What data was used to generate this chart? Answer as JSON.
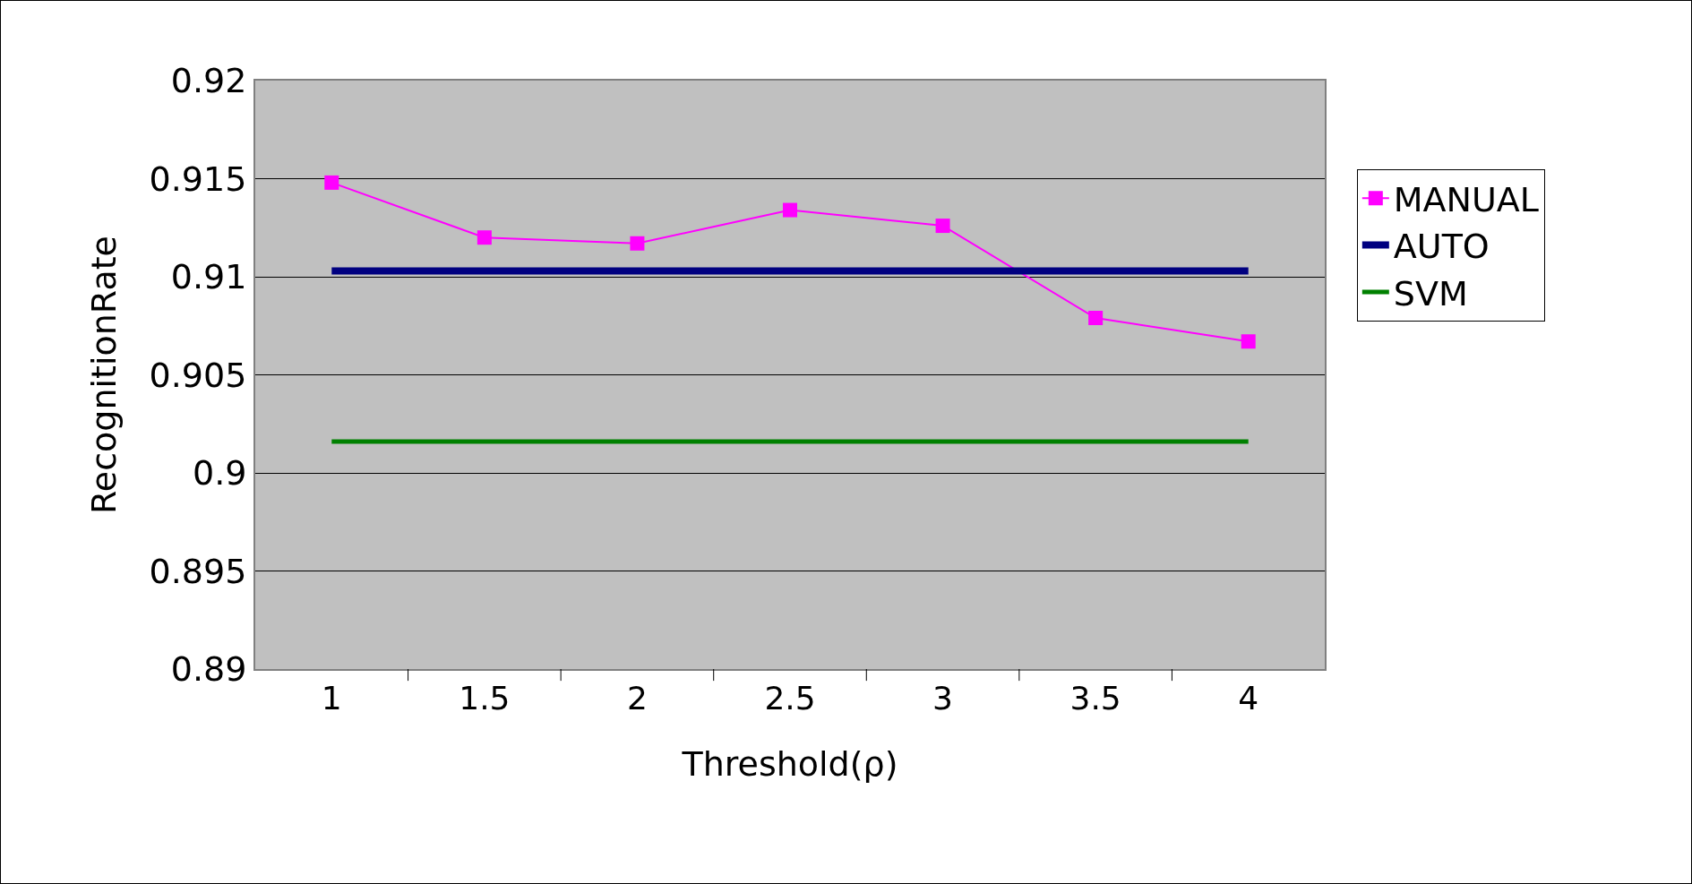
{
  "chart_data": {
    "type": "line",
    "xlabel": "Threshold(ρ)",
    "ylabel": "RecognitionRate",
    "categories": [
      "1",
      "1.5",
      "2",
      "2.5",
      "3",
      "3.5",
      "4"
    ],
    "series": [
      {
        "name": "MANUAL",
        "color": "#ff00ff",
        "marker": "square",
        "values": [
          0.9148,
          0.912,
          0.9117,
          0.9134,
          0.9126,
          0.9079,
          0.9067
        ]
      },
      {
        "name": "AUTO",
        "color": "#000080",
        "marker": "none",
        "values": [
          0.9103,
          0.9103,
          0.9103,
          0.9103,
          0.9103,
          0.9103,
          0.9103
        ]
      },
      {
        "name": "SVM",
        "color": "#008000",
        "marker": "none",
        "values": [
          0.9016,
          0.9016,
          0.9016,
          0.9016,
          0.9016,
          0.9016,
          0.9016
        ]
      }
    ],
    "ylim": [
      0.89,
      0.92
    ],
    "yticks": [
      0.89,
      0.895,
      0.9,
      0.905,
      0.91,
      0.915,
      0.92
    ],
    "grid": "y",
    "legend": "right",
    "line_style": "solid"
  }
}
